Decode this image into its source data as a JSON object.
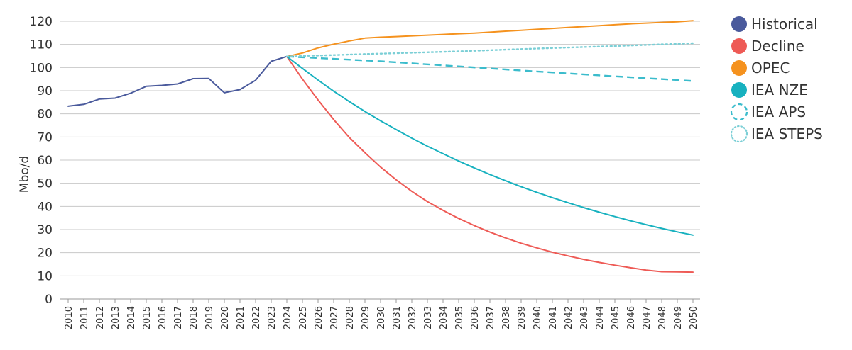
{
  "chart_data": {
    "type": "line",
    "ylabel": "Mbo/d",
    "xlabel": "",
    "ylim": [
      0,
      120
    ],
    "yticks": [
      0,
      10,
      20,
      30,
      40,
      50,
      60,
      70,
      80,
      90,
      100,
      110,
      120
    ],
    "xlim": [
      2010,
      2050
    ],
    "xticks": [
      2010,
      2011,
      2012,
      2013,
      2014,
      2015,
      2016,
      2017,
      2018,
      2019,
      2020,
      2021,
      2022,
      2023,
      2024,
      2025,
      2026,
      2027,
      2028,
      2029,
      2030,
      2031,
      2032,
      2033,
      2034,
      2035,
      2036,
      2037,
      2038,
      2039,
      2040,
      2041,
      2042,
      2043,
      2044,
      2045,
      2046,
      2047,
      2048,
      2049,
      2050
    ],
    "grid": "horizontal",
    "legend_position": "right",
    "series": [
      {
        "name": "Historical",
        "color": "#4a5a9c",
        "style": "solid",
        "x": [
          2010,
          2011,
          2012,
          2013,
          2014,
          2015,
          2016,
          2017,
          2018,
          2019,
          2020,
          2021,
          2022,
          2023,
          2024
        ],
        "y": [
          83.3,
          84.1,
          86.4,
          86.8,
          88.9,
          91.9,
          92.3,
          92.9,
          95.2,
          95.3,
          89.1,
          90.5,
          94.5,
          102.7,
          104.8
        ]
      },
      {
        "name": "Decline",
        "color": "#ee5a55",
        "style": "solid",
        "x": [
          2024,
          2025,
          2026,
          2027,
          2028,
          2029,
          2030,
          2031,
          2032,
          2033,
          2034,
          2035,
          2036,
          2037,
          2038,
          2039,
          2040,
          2041,
          2042,
          2043,
          2044,
          2045,
          2046,
          2047,
          2048,
          2049,
          2050
        ],
        "y": [
          104.8,
          95.0,
          86.0,
          77.5,
          69.8,
          63.2,
          57.0,
          51.5,
          46.5,
          42.1,
          38.3,
          34.8,
          31.7,
          28.9,
          26.4,
          24.1,
          22.1,
          20.2,
          18.6,
          17.1,
          15.8,
          14.6,
          13.5,
          12.5,
          11.8,
          11.7,
          11.6
        ]
      },
      {
        "name": "OPEC",
        "color": "#f5921e",
        "style": "solid",
        "x": [
          2024,
          2025,
          2026,
          2027,
          2028,
          2029,
          2030,
          2031,
          2032,
          2033,
          2034,
          2035,
          2036,
          2037,
          2038,
          2039,
          2040,
          2041,
          2042,
          2043,
          2044,
          2045,
          2046,
          2047,
          2048,
          2049,
          2050
        ],
        "y": [
          104.8,
          106.3,
          108.5,
          110.1,
          111.5,
          112.7,
          113.1,
          113.4,
          113.7,
          114.0,
          114.3,
          114.6,
          114.9,
          115.3,
          115.7,
          116.1,
          116.5,
          116.9,
          117.3,
          117.7,
          118.1,
          118.5,
          118.9,
          119.2,
          119.5,
          119.8,
          120.2
        ]
      },
      {
        "name": "IEA NZE",
        "color": "#17b1bf",
        "style": "solid",
        "x": [
          2024,
          2025,
          2026,
          2027,
          2028,
          2029,
          2030,
          2031,
          2032,
          2033,
          2034,
          2035,
          2036,
          2037,
          2038,
          2039,
          2040,
          2041,
          2042,
          2043,
          2044,
          2045,
          2046,
          2047,
          2048,
          2049,
          2050
        ],
        "y": [
          104.8,
          99.6,
          94.6,
          89.8,
          85.3,
          81.0,
          77.0,
          73.2,
          69.5,
          66.0,
          62.8,
          59.6,
          56.6,
          53.8,
          51.1,
          48.5,
          46.1,
          43.8,
          41.6,
          39.5,
          37.5,
          35.6,
          33.8,
          32.1,
          30.5,
          29.0,
          27.6
        ]
      },
      {
        "name": "IEA APS",
        "color": "#3bbccc",
        "style": "dashed",
        "x": [
          2024,
          2030,
          2035,
          2040,
          2045,
          2050
        ],
        "y": [
          104.8,
          102.7,
          100.5,
          98.3,
          96.2,
          94.2
        ]
      },
      {
        "name": "IEA STEPS",
        "color": "#7ccfd6",
        "style": "dotted",
        "x": [
          2024,
          2030,
          2035,
          2040,
          2045,
          2050
        ],
        "y": [
          104.8,
          106.0,
          107.0,
          108.2,
          109.3,
          110.5
        ]
      }
    ]
  }
}
